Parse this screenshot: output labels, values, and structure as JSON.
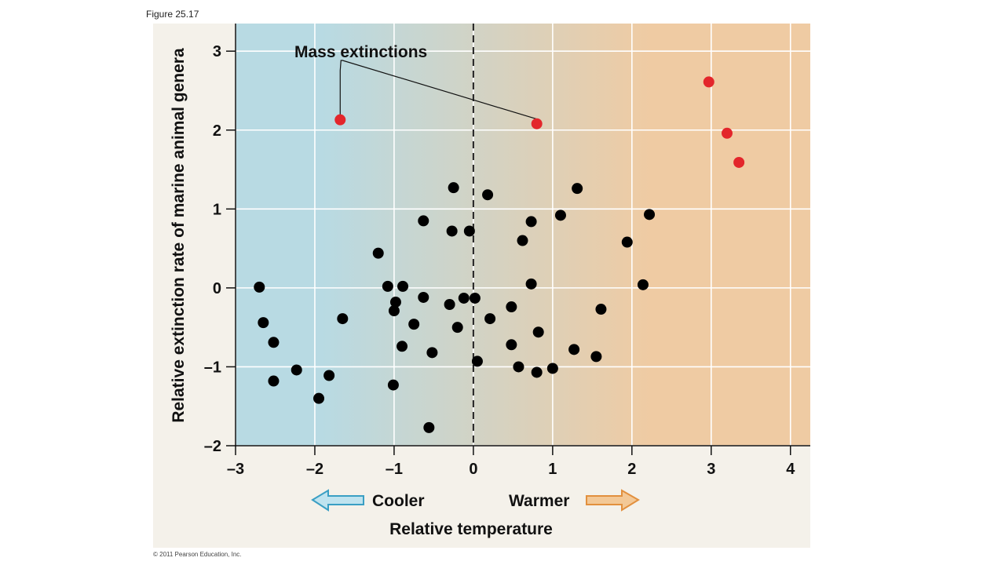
{
  "figure_label": "Figure 25.17",
  "copyright": "© 2011 Pearson Education, Inc.",
  "chart_data": {
    "type": "scatter",
    "xlabel": "Relative temperature",
    "ylabel": "Relative extinction rate of marine animal genera",
    "xlim": [
      -3,
      4.25
    ],
    "ylim": [
      -2,
      3.35
    ],
    "xticks": [
      -3,
      -2,
      -1,
      0,
      1,
      2,
      3,
      4
    ],
    "yticks": [
      -2,
      -1,
      0,
      1,
      2,
      3
    ],
    "xtick_labels": [
      "–3",
      "–2",
      "–1",
      "0",
      "1",
      "2",
      "3",
      "4"
    ],
    "ytick_labels": [
      "–2",
      "–1",
      "0",
      "1",
      "2",
      "3"
    ],
    "grid": true,
    "background_gradient": {
      "cool_color": "#b8dae3",
      "warm_color": "#efcba3"
    },
    "reference_line": {
      "x": 0,
      "style": "dashed",
      "color": "#222222"
    },
    "direction_labels": {
      "cooler": "Cooler",
      "warmer": "Warmer"
    },
    "arrow_colors": {
      "cooler_fill": "#bfe3ef",
      "cooler_stroke": "#3a9fc4",
      "warmer_fill": "#f3c896",
      "warmer_stroke": "#e2903e"
    },
    "annotation": {
      "text": "Mass extinctions",
      "targets": [
        [
          -1.68,
          2.13
        ],
        [
          0.8,
          2.08
        ]
      ]
    },
    "series": [
      {
        "color": "#000000",
        "points": [
          [
            -2.7,
            0.01
          ],
          [
            -2.65,
            -0.44
          ],
          [
            -2.52,
            -0.69
          ],
          [
            -2.52,
            -1.18
          ],
          [
            -2.23,
            -1.04
          ],
          [
            -1.82,
            -1.11
          ],
          [
            -1.95,
            -1.4
          ],
          [
            -1.65,
            -0.39
          ],
          [
            -1.2,
            0.44
          ],
          [
            -1.08,
            0.02
          ],
          [
            -0.98,
            -0.18
          ],
          [
            -1.0,
            -0.29
          ],
          [
            -0.89,
            0.02
          ],
          [
            -0.9,
            -0.74
          ],
          [
            -0.75,
            -0.46
          ],
          [
            -1.01,
            -1.23
          ],
          [
            -0.63,
            -0.12
          ],
          [
            -0.63,
            0.85
          ],
          [
            -0.52,
            -0.82
          ],
          [
            -0.56,
            -1.77
          ],
          [
            -0.25,
            1.27
          ],
          [
            -0.27,
            0.72
          ],
          [
            -0.05,
            0.72
          ],
          [
            -0.3,
            -0.21
          ],
          [
            -0.2,
            -0.5
          ],
          [
            -0.12,
            -0.13
          ],
          [
            0.02,
            -0.13
          ],
          [
            0.05,
            -0.93
          ],
          [
            0.18,
            1.18
          ],
          [
            0.21,
            -0.39
          ],
          [
            0.48,
            -0.24
          ],
          [
            0.48,
            -0.72
          ],
          [
            0.57,
            -1.0
          ],
          [
            0.62,
            0.6
          ],
          [
            0.73,
            0.84
          ],
          [
            0.73,
            0.05
          ],
          [
            0.82,
            -0.56
          ],
          [
            0.8,
            -1.07
          ],
          [
            1.1,
            0.92
          ],
          [
            1.0,
            -1.02
          ],
          [
            1.27,
            -0.78
          ],
          [
            1.31,
            1.26
          ],
          [
            1.55,
            -0.87
          ],
          [
            1.61,
            -0.27
          ],
          [
            1.94,
            0.58
          ],
          [
            2.14,
            0.04
          ],
          [
            2.22,
            0.93
          ]
        ]
      },
      {
        "color": "#e3262b",
        "points": [
          [
            -1.68,
            2.13
          ],
          [
            0.8,
            2.08
          ],
          [
            2.97,
            2.61
          ],
          [
            3.2,
            1.96
          ],
          [
            3.35,
            1.59
          ]
        ]
      }
    ]
  }
}
